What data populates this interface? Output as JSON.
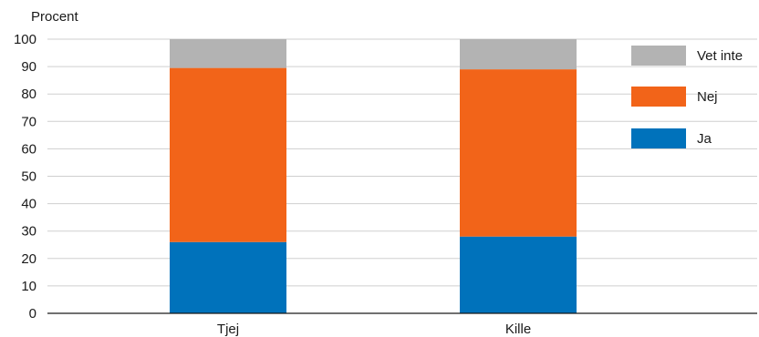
{
  "chart_data": {
    "type": "bar",
    "stacked": true,
    "title": "",
    "xlabel": "",
    "ylabel": "Procent",
    "ylim": [
      0,
      100
    ],
    "yticks": [
      0,
      10,
      20,
      30,
      40,
      50,
      60,
      70,
      80,
      90,
      100
    ],
    "grid": true,
    "legend_position": "right",
    "categories": [
      "Tjej",
      "Kille"
    ],
    "series": [
      {
        "name": "Ja",
        "color": "#0072bb",
        "values": [
          26,
          28
        ]
      },
      {
        "name": "Nej",
        "color": "#f26419",
        "values": [
          63.5,
          61
        ]
      },
      {
        "name": "Vet inte",
        "color": "#b3b3b3",
        "values": [
          10.5,
          11
        ]
      }
    ],
    "legend_order": [
      "Vet inte",
      "Nej",
      "Ja"
    ]
  }
}
